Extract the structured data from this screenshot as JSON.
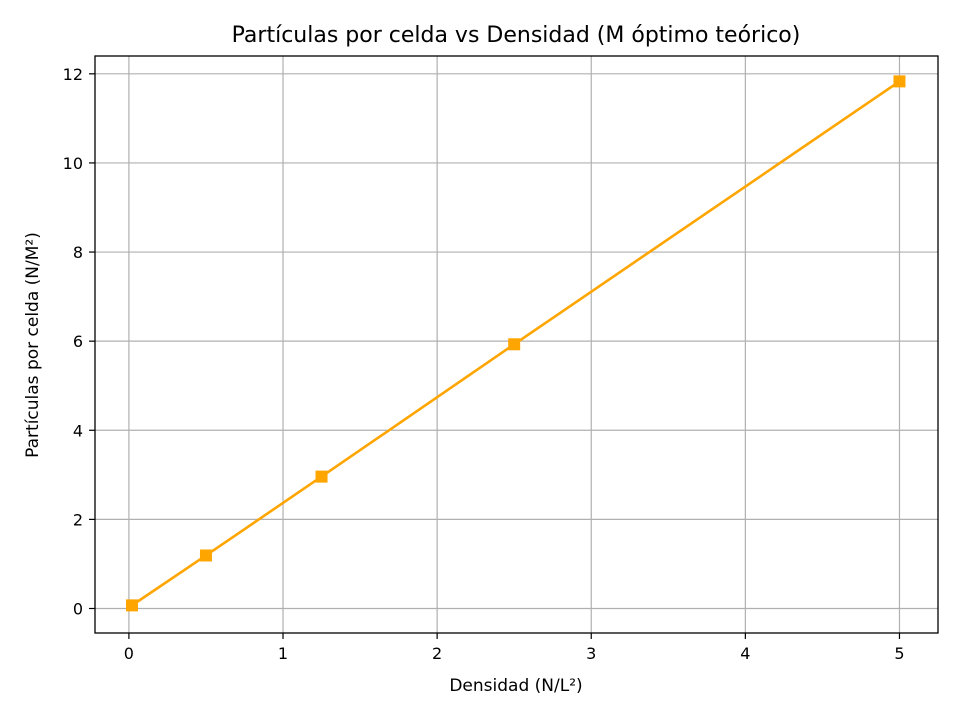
{
  "chart_data": {
    "type": "line",
    "title": "Partículas por celda vs Densidad (M óptimo teórico)",
    "xlabel": "Densidad (N/L²)",
    "ylabel": "Partículas por celda (N/M²)",
    "xlim": [
      -0.22,
      5.25
    ],
    "ylim": [
      -0.55,
      12.4
    ],
    "xticks": [
      0,
      1,
      2,
      3,
      4,
      5
    ],
    "yticks": [
      0,
      2,
      4,
      6,
      8,
      10,
      12
    ],
    "grid": true,
    "series": [
      {
        "color": "#FFA500",
        "marker": "square",
        "x": [
          0.02,
          0.5,
          1.25,
          2.5,
          5.0
        ],
        "y": [
          0.07,
          1.19,
          2.96,
          5.93,
          11.83
        ]
      }
    ]
  }
}
